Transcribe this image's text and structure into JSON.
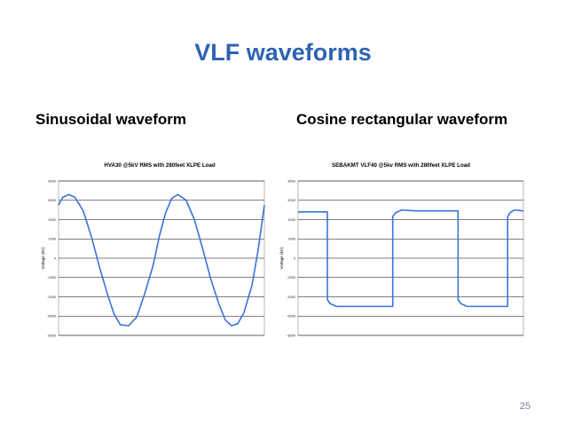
{
  "slide": {
    "title": "VLF waveforms",
    "left_heading": "Sinusoidal waveform",
    "right_heading": "Cosine rectangular waveform",
    "page_number": "25"
  },
  "colors": {
    "title": "#2f63b3",
    "series": "#3b72d9",
    "grid": "#000000"
  },
  "chart_data": [
    {
      "type": "line",
      "title": "HVA30 @5kV RMS with 280feet XLPE Load",
      "ylabel": "Voltage (kV)",
      "xlabel": "",
      "ylim": [
        -8000,
        8000
      ],
      "yticks": [
        8000,
        6000,
        4000,
        2000,
        0,
        -2000,
        -4000,
        -6000,
        -8000
      ],
      "ytick_labels": [
        "8000",
        "6000",
        "4000",
        "2000",
        "0",
        "-2000",
        "-4000",
        "-6000",
        "-8000"
      ],
      "grid": true,
      "series": [
        {
          "x": [
            0,
            0.02,
            0.05,
            0.08,
            0.12,
            0.16,
            0.2,
            0.24,
            0.27,
            0.3,
            0.34,
            0.38,
            0.42,
            0.46,
            0.49,
            0.52,
            0.55,
            0.58,
            0.62,
            0.66,
            0.7,
            0.74,
            0.78,
            0.81,
            0.84,
            0.87,
            0.9,
            0.94,
            0.97,
            1.0
          ],
          "y": [
            5500,
            6300,
            6600,
            6300,
            4900,
            2200,
            -1000,
            -3900,
            -5800,
            -6900,
            -7000,
            -6100,
            -3600,
            -700,
            2300,
            4700,
            6200,
            6600,
            6000,
            4000,
            1000,
            -2200,
            -4800,
            -6400,
            -7000,
            -6800,
            -5700,
            -2800,
            900,
            5500
          ]
        }
      ]
    },
    {
      "type": "line",
      "title": "SEBAKMT VLF40 @5kv RMS with 280feet XLPE Load",
      "ylabel": "Voltage (kV)",
      "xlabel": "",
      "ylim": [
        -8000,
        8000
      ],
      "yticks": [
        8000,
        6000,
        4000,
        2000,
        0,
        -2000,
        -4000,
        -6000,
        -8000
      ],
      "ytick_labels": [
        "8000",
        "6000",
        "4000",
        "2000",
        "0",
        "-2000",
        "-4000",
        "-6000",
        "-8000"
      ],
      "grid": true,
      "series": [
        {
          "x": [
            0,
            0.13,
            0.13,
            0.142,
            0.17,
            0.21,
            0.34,
            0.42,
            0.42,
            0.432,
            0.46,
            0.52,
            0.64,
            0.71,
            0.71,
            0.722,
            0.75,
            0.83,
            0.93,
            0.93,
            0.94,
            0.96,
            1.0
          ],
          "y": [
            4800,
            4800,
            -4300,
            -4700,
            -5000,
            -5000,
            -5000,
            -5000,
            4300,
            4700,
            5000,
            4900,
            4900,
            4900,
            -4300,
            -4700,
            -5000,
            -5000,
            -5000,
            4300,
            4700,
            5000,
            4900
          ]
        }
      ]
    }
  ]
}
